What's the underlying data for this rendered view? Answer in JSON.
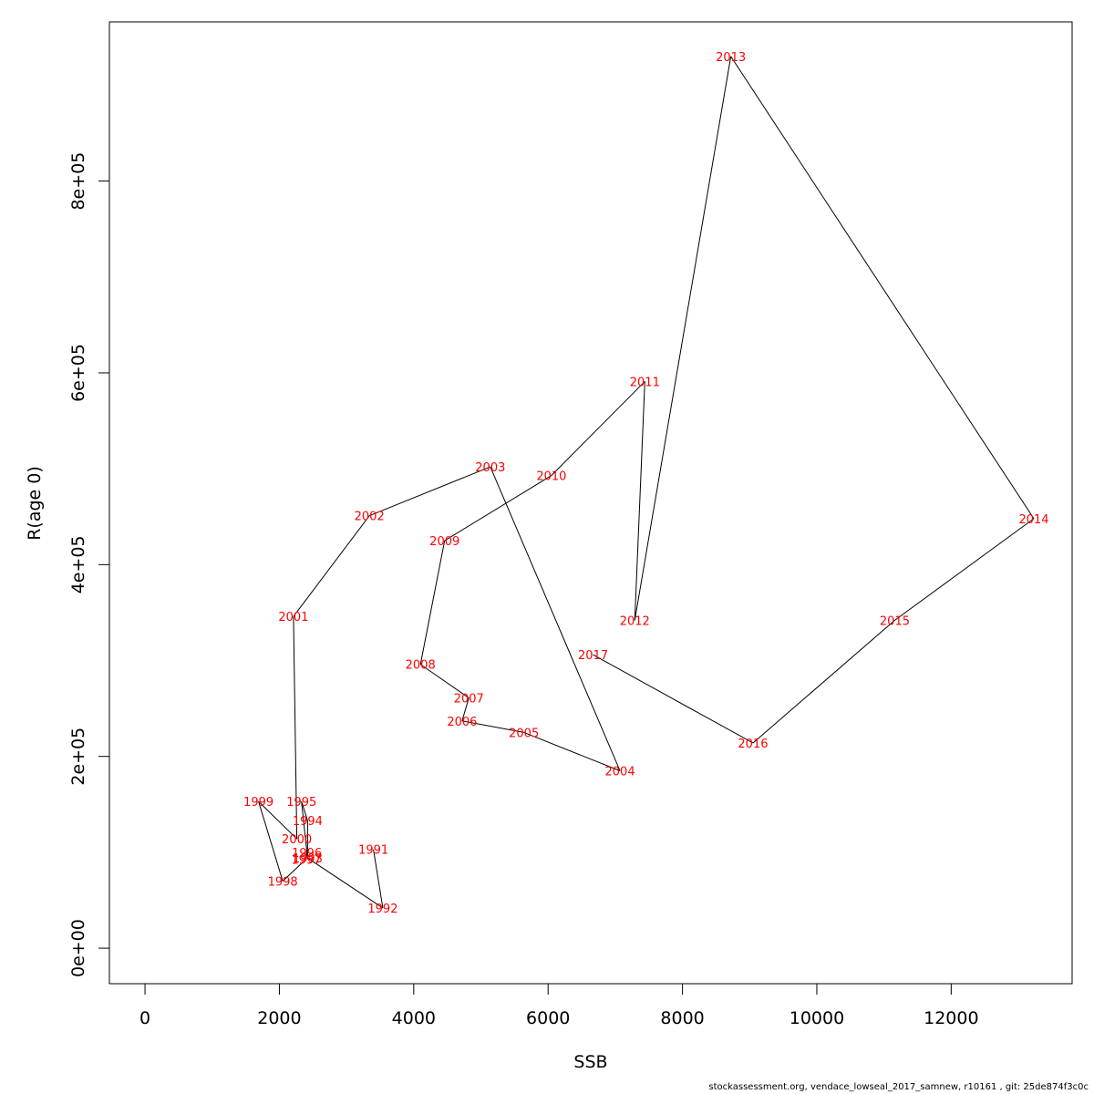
{
  "chart_data": {
    "type": "line",
    "xlabel": "SSB",
    "ylabel": "R(age 0)",
    "xlim": [
      -530,
      13800
    ],
    "ylim": [
      -37000,
      966000
    ],
    "x_ticks": [
      0,
      2000,
      4000,
      6000,
      8000,
      10000,
      12000
    ],
    "x_tick_labels": [
      "0",
      "2000",
      "4000",
      "6000",
      "8000",
      "10000",
      "12000"
    ],
    "y_ticks": [
      0,
      200000,
      400000,
      600000,
      800000
    ],
    "y_tick_labels": [
      "0e+00",
      "2e+05",
      "4e+05",
      "6e+05",
      "8e+05"
    ],
    "grid": false,
    "line_color": "#000000",
    "label_color": "#ff0000",
    "points": [
      {
        "label": "1991",
        "x": 3400,
        "y": 103000
      },
      {
        "label": "1992",
        "x": 3540,
        "y": 42000
      },
      {
        "label": "1993",
        "x": 2420,
        "y": 94000
      },
      {
        "label": "1994",
        "x": 2420,
        "y": 133000
      },
      {
        "label": "1995",
        "x": 2330,
        "y": 153000
      },
      {
        "label": "1996",
        "x": 2410,
        "y": 100000
      },
      {
        "label": "1997",
        "x": 2400,
        "y": 93000
      },
      {
        "label": "1998",
        "x": 2050,
        "y": 70000
      },
      {
        "label": "1999",
        "x": 1690,
        "y": 153000
      },
      {
        "label": "2000",
        "x": 2260,
        "y": 114000
      },
      {
        "label": "2001",
        "x": 2210,
        "y": 346000
      },
      {
        "label": "2002",
        "x": 3340,
        "y": 451000
      },
      {
        "label": "2003",
        "x": 5140,
        "y": 502000
      },
      {
        "label": "2004",
        "x": 7070,
        "y": 185000
      },
      {
        "label": "2005",
        "x": 5640,
        "y": 225000
      },
      {
        "label": "2006",
        "x": 4720,
        "y": 237000
      },
      {
        "label": "2007",
        "x": 4820,
        "y": 261000
      },
      {
        "label": "2008",
        "x": 4100,
        "y": 296000
      },
      {
        "label": "2009",
        "x": 4460,
        "y": 425000
      },
      {
        "label": "2010",
        "x": 6050,
        "y": 493000
      },
      {
        "label": "2011",
        "x": 7440,
        "y": 591000
      },
      {
        "label": "2012",
        "x": 7290,
        "y": 342000
      },
      {
        "label": "2013",
        "x": 8720,
        "y": 930000
      },
      {
        "label": "2014",
        "x": 13230,
        "y": 448000
      },
      {
        "label": "2015",
        "x": 11160,
        "y": 342000
      },
      {
        "label": "2016",
        "x": 9050,
        "y": 214000
      },
      {
        "label": "2017",
        "x": 6670,
        "y": 306000
      }
    ]
  },
  "footer": {
    "text": "stockassessment.org, vendace_lowseal_2017_samnew, r10161 , git: 25de874f3c0c"
  }
}
